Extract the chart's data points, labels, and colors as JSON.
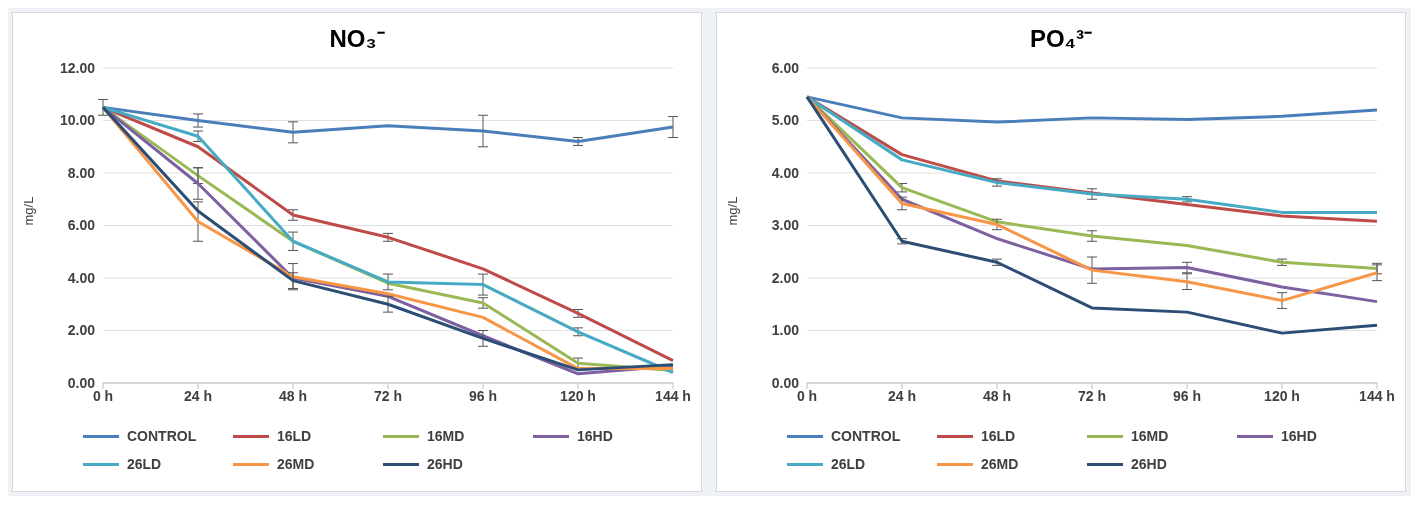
{
  "chart_data": [
    {
      "type": "line",
      "title": "NO₃⁻",
      "ylabel": "mg/L",
      "categories": [
        "0 h",
        "24 h",
        "48 h",
        "72 h",
        "96 h",
        "120 h",
        "144 h"
      ],
      "ylim": [
        0,
        12
      ],
      "yticks": [
        {
          "value": 0,
          "label": "0.00"
        },
        {
          "value": 2,
          "label": "2.00"
        },
        {
          "value": 4,
          "label": "4.00"
        },
        {
          "value": 6,
          "label": "6.00"
        },
        {
          "value": 8,
          "label": "8.00"
        },
        {
          "value": 10,
          "label": "10.00"
        },
        {
          "value": 12,
          "label": "12.00"
        }
      ],
      "grid": "y",
      "legend": "bottom",
      "marker": "none",
      "line_style": "solid",
      "series": [
        {
          "name": "CONTROL",
          "color": "#4a7ebb",
          "values": [
            10.5,
            10.0,
            9.55,
            9.8,
            9.6,
            9.2,
            9.75
          ],
          "errors": [
            0.3,
            0.25,
            0.4,
            null,
            0.6,
            0.15,
            0.4
          ]
        },
        {
          "name": "16LD",
          "color": "#be4b48",
          "values": [
            10.5,
            9.0,
            6.4,
            5.55,
            4.35,
            2.65,
            0.85
          ],
          "errors": [
            null,
            null,
            0.2,
            0.15,
            null,
            0.15,
            null
          ]
        },
        {
          "name": "16MD",
          "color": "#98b954",
          "values": [
            10.5,
            7.9,
            5.4,
            3.8,
            3.05,
            0.75,
            0.48
          ],
          "errors": [
            null,
            0.3,
            null,
            null,
            0.2,
            0.2,
            null
          ]
        },
        {
          "name": "16HD",
          "color": "#7d60a0",
          "values": [
            10.5,
            7.6,
            4.0,
            3.3,
            1.8,
            0.35,
            0.65
          ],
          "errors": [
            null,
            0.6,
            null,
            null,
            null,
            null,
            null
          ]
        },
        {
          "name": "26LD",
          "color": "#46aac5",
          "values": [
            10.5,
            9.4,
            5.4,
            3.85,
            3.75,
            1.95,
            0.4
          ],
          "errors": [
            null,
            0.2,
            0.35,
            0.3,
            0.4,
            0.15,
            null
          ]
        },
        {
          "name": "26MD",
          "color": "#f79646",
          "values": [
            10.5,
            6.15,
            4.05,
            3.4,
            2.5,
            0.55,
            0.55
          ],
          "errors": [
            null,
            0.75,
            0.5,
            null,
            null,
            null,
            null
          ]
        },
        {
          "name": "26HD",
          "color": "#2c4d75",
          "values": [
            10.5,
            6.55,
            3.9,
            3.0,
            1.7,
            0.5,
            0.7
          ],
          "errors": [
            null,
            null,
            0.3,
            0.3,
            0.3,
            null,
            null
          ]
        }
      ]
    },
    {
      "type": "line",
      "title": "PO₄³⁻",
      "ylabel": "mg/L",
      "categories": [
        "0 h",
        "24 h",
        "48 h",
        "72 h",
        "96 h",
        "120 h",
        "144 h"
      ],
      "ylim": [
        0,
        6
      ],
      "yticks": [
        {
          "value": 0,
          "label": "0.00"
        },
        {
          "value": 1,
          "label": "1.00"
        },
        {
          "value": 2,
          "label": "2.00"
        },
        {
          "value": 3,
          "label": "3.00"
        },
        {
          "value": 4,
          "label": "4.00"
        },
        {
          "value": 5,
          "label": "5.00"
        },
        {
          "value": 6,
          "label": "6.00"
        }
      ],
      "grid": "y",
      "legend": "bottom",
      "marker": "none",
      "line_style": "solid",
      "series": [
        {
          "name": "CONTROL",
          "color": "#4a7ebb",
          "values": [
            5.45,
            5.05,
            4.97,
            5.05,
            5.02,
            5.08,
            5.2
          ]
        },
        {
          "name": "16LD",
          "color": "#be4b48",
          "values": [
            5.45,
            4.35,
            3.85,
            3.62,
            3.4,
            3.18,
            3.08
          ]
        },
        {
          "name": "16MD",
          "color": "#98b954",
          "values": [
            5.45,
            3.72,
            3.07,
            2.8,
            2.62,
            2.3,
            2.18
          ],
          "errors": [
            null,
            0.08,
            null,
            0.1,
            null,
            0.06,
            0.1
          ]
        },
        {
          "name": "16HD",
          "color": "#7d60a0",
          "values": [
            5.45,
            3.5,
            2.75,
            2.17,
            2.2,
            1.83,
            1.55
          ],
          "errors": [
            null,
            null,
            null,
            null,
            0.1,
            null,
            null
          ]
        },
        {
          "name": "26LD",
          "color": "#46aac5",
          "values": [
            5.45,
            4.25,
            3.82,
            3.6,
            3.5,
            3.25,
            3.25
          ],
          "errors": [
            null,
            null,
            0.07,
            0.1,
            0.05,
            null,
            null
          ]
        },
        {
          "name": "26MD",
          "color": "#f79646",
          "values": [
            5.45,
            3.42,
            3.02,
            2.15,
            1.93,
            1.57,
            2.1
          ],
          "errors": [
            null,
            0.12,
            0.1,
            0.25,
            0.15,
            0.15,
            0.15
          ]
        },
        {
          "name": "26HD",
          "color": "#2c4d75",
          "values": [
            5.45,
            2.7,
            2.3,
            1.43,
            1.35,
            0.95,
            1.1
          ],
          "errors": [
            null,
            0.05,
            0.06,
            null,
            null,
            null,
            null
          ]
        }
      ]
    }
  ]
}
